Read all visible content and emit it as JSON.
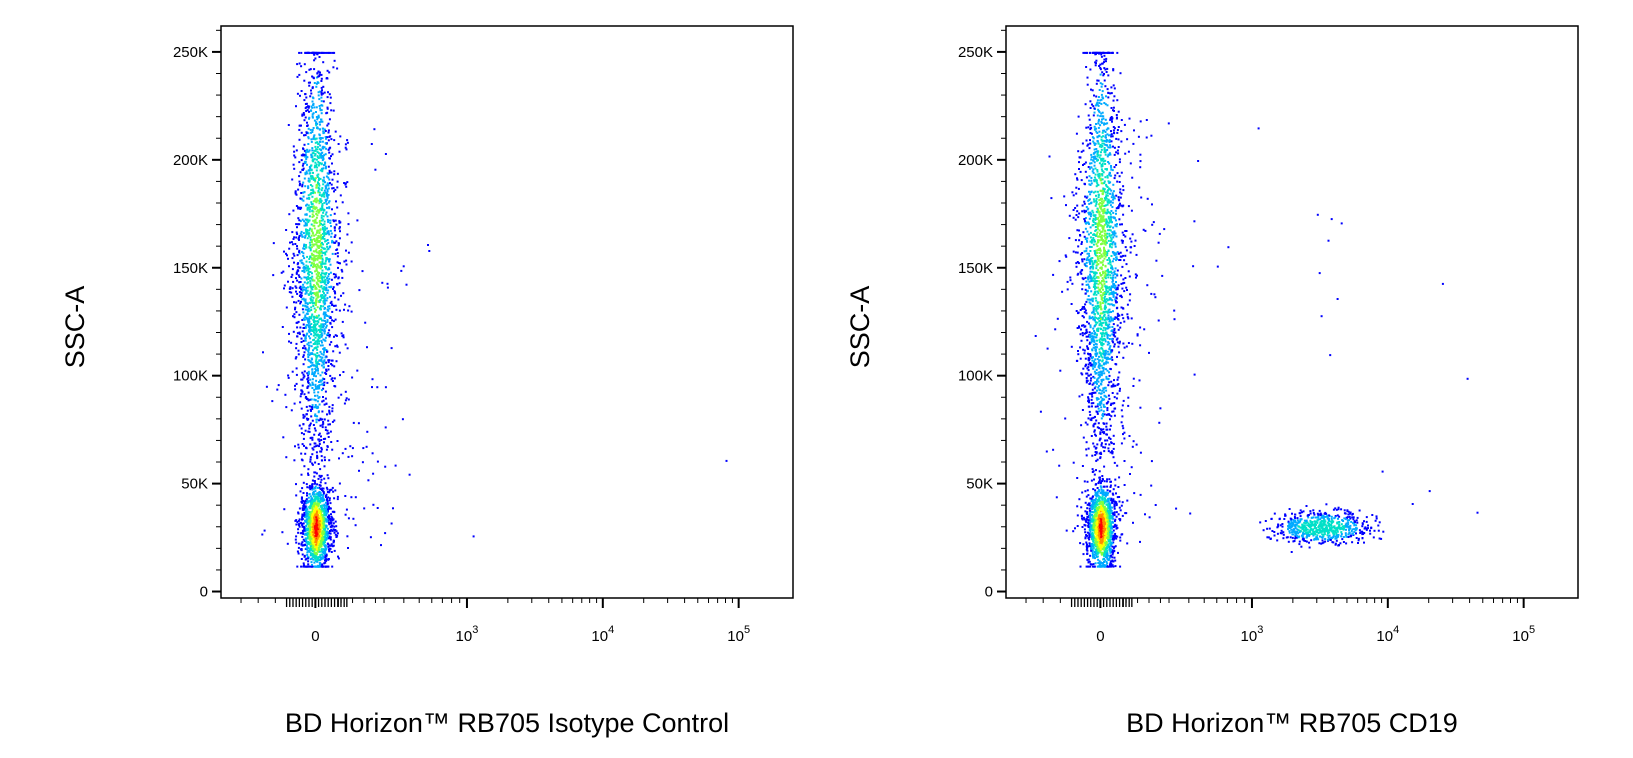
{
  "colors": {
    "density_scale": [
      "#0000ff",
      "#00aaff",
      "#00e0c8",
      "#7fff40",
      "#ffff00",
      "#ff8c00",
      "#ff0000"
    ],
    "frame": "#000000",
    "background": "#ffffff"
  },
  "chart_data": [
    {
      "type": "scatter",
      "subtype": "flow-cytometry-density-dot-plot",
      "title": "",
      "xlabel": "BD Horizon™ RB705 Isotype Control",
      "ylabel": "SSC-A",
      "x_scale": "biexponential",
      "x_tick_labels": [
        {
          "value": 0,
          "base": "0",
          "exp": ""
        },
        {
          "value": 1000,
          "base": "10",
          "exp": "3"
        },
        {
          "value": 10000,
          "base": "10",
          "exp": "4"
        },
        {
          "value": 100000,
          "base": "10",
          "exp": "5"
        }
      ],
      "y_scale": "linear",
      "ylim": [
        -3000,
        262000
      ],
      "y_ticks": [
        0,
        50000,
        100000,
        150000,
        200000,
        250000
      ],
      "y_tick_labels": [
        "0",
        "50K",
        "100K",
        "150K",
        "200K",
        "250K"
      ],
      "populations": [
        {
          "kind": "main-vertical",
          "x_center": 0,
          "ssc_range": [
            15000,
            250000
          ],
          "ssc_dense_center": 30000,
          "density_peak": "red"
        },
        {
          "kind": "scattered-events",
          "x_range": [
            0,
            1000
          ],
          "ssc_range": [
            20000,
            230000
          ],
          "density_peak": "blue"
        }
      ],
      "outliers": [
        {
          "x": 1100,
          "y": 26000
        },
        {
          "x": 80000,
          "y": 61000
        },
        {
          "x": 560,
          "y": 161000
        },
        {
          "x": 380,
          "y": 149000
        },
        {
          "x": 330,
          "y": 32000
        }
      ]
    },
    {
      "type": "scatter",
      "subtype": "flow-cytometry-density-dot-plot",
      "title": "",
      "xlabel": "BD Horizon™ RB705 CD19",
      "ylabel": "SSC-A",
      "x_scale": "biexponential",
      "x_tick_labels": [
        {
          "value": 0,
          "base": "0",
          "exp": ""
        },
        {
          "value": 1000,
          "base": "10",
          "exp": "3"
        },
        {
          "value": 10000,
          "base": "10",
          "exp": "4"
        },
        {
          "value": 100000,
          "base": "10",
          "exp": "5"
        }
      ],
      "y_scale": "linear",
      "ylim": [
        -3000,
        262000
      ],
      "y_ticks": [
        0,
        50000,
        100000,
        150000,
        200000,
        250000
      ],
      "y_tick_labels": [
        "0",
        "50K",
        "100K",
        "150K",
        "200K",
        "250K"
      ],
      "populations": [
        {
          "kind": "main-vertical",
          "x_center": 0,
          "ssc_range": [
            15000,
            250000
          ],
          "ssc_dense_center": 30000,
          "density_peak": "red"
        },
        {
          "kind": "CD19-positive-cluster",
          "x_center": 3200,
          "x_range": [
            1500,
            7000
          ],
          "ssc_range": [
            20000,
            50000
          ],
          "ssc_dense_center": 30000,
          "density_peak": "cyan"
        }
      ],
      "outliers": [
        {
          "x": 1100,
          "y": 215000
        },
        {
          "x": 3000,
          "y": 175000
        },
        {
          "x": 3800,
          "y": 173000
        },
        {
          "x": 4500,
          "y": 171000
        },
        {
          "x": 3600,
          "y": 163000
        },
        {
          "x": 3100,
          "y": 148000
        },
        {
          "x": 3200,
          "y": 128000
        },
        {
          "x": 4200,
          "y": 136000
        },
        {
          "x": 3700,
          "y": 110000
        },
        {
          "x": 25000,
          "y": 143000
        },
        {
          "x": 38000,
          "y": 99000
        },
        {
          "x": 45000,
          "y": 37000
        },
        {
          "x": 20000,
          "y": 47000
        },
        {
          "x": 15000,
          "y": 41000
        },
        {
          "x": 9000,
          "y": 56000
        },
        {
          "x": 600,
          "y": 151000
        },
        {
          "x": 700,
          "y": 160000
        }
      ]
    }
  ]
}
